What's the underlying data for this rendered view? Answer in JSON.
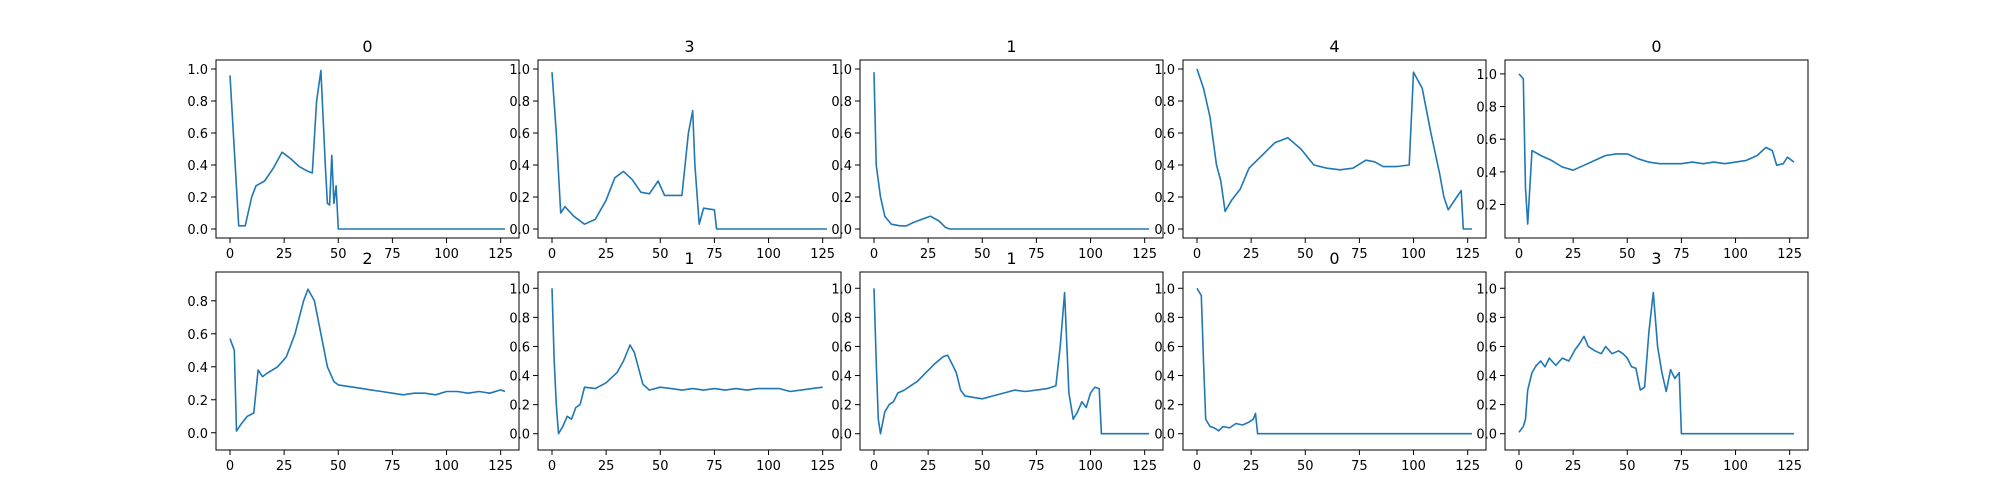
{
  "chart_data": [
    {
      "type": "line",
      "title": "0",
      "x_range": [
        0,
        127
      ],
      "ylim": [
        0,
        1.0
      ],
      "xticks": [
        0,
        25,
        50,
        75,
        100,
        125
      ],
      "yticks": [
        0.0,
        0.2,
        0.4,
        0.6,
        0.8,
        1.0
      ],
      "points": [
        [
          0,
          0.96
        ],
        [
          4,
          0.02
        ],
        [
          7,
          0.02
        ],
        [
          10,
          0.2
        ],
        [
          12,
          0.27
        ],
        [
          16,
          0.3
        ],
        [
          20,
          0.38
        ],
        [
          24,
          0.48
        ],
        [
          28,
          0.44
        ],
        [
          32,
          0.39
        ],
        [
          36,
          0.36
        ],
        [
          38,
          0.35
        ],
        [
          40,
          0.8
        ],
        [
          42,
          0.99
        ],
        [
          44,
          0.4
        ],
        [
          45,
          0.16
        ],
        [
          46,
          0.15
        ],
        [
          47,
          0.46
        ],
        [
          48,
          0.16
        ],
        [
          49,
          0.27
        ],
        [
          50,
          0.0
        ],
        [
          60,
          0.0
        ],
        [
          80,
          0.0
        ],
        [
          100,
          0.0
        ],
        [
          127,
          0.0
        ]
      ]
    },
    {
      "type": "line",
      "title": "3",
      "x_range": [
        0,
        127
      ],
      "ylim": [
        0,
        1.0
      ],
      "xticks": [
        0,
        25,
        50,
        75,
        100,
        125
      ],
      "yticks": [
        0.0,
        0.2,
        0.4,
        0.6,
        0.8,
        1.0
      ],
      "points": [
        [
          0,
          0.98
        ],
        [
          2,
          0.6
        ],
        [
          4,
          0.1
        ],
        [
          6,
          0.14
        ],
        [
          10,
          0.08
        ],
        [
          15,
          0.03
        ],
        [
          20,
          0.06
        ],
        [
          25,
          0.18
        ],
        [
          29,
          0.32
        ],
        [
          33,
          0.36
        ],
        [
          37,
          0.31
        ],
        [
          41,
          0.23
        ],
        [
          45,
          0.22
        ],
        [
          49,
          0.3
        ],
        [
          52,
          0.21
        ],
        [
          56,
          0.21
        ],
        [
          60,
          0.21
        ],
        [
          63,
          0.6
        ],
        [
          65,
          0.74
        ],
        [
          66,
          0.4
        ],
        [
          68,
          0.03
        ],
        [
          70,
          0.13
        ],
        [
          75,
          0.12
        ],
        [
          76,
          0.0
        ],
        [
          80,
          0.0
        ],
        [
          100,
          0.0
        ],
        [
          127,
          0.0
        ]
      ]
    },
    {
      "type": "line",
      "title": "1",
      "x_range": [
        0,
        127
      ],
      "ylim": [
        0,
        1.0
      ],
      "xticks": [
        0,
        25,
        50,
        75,
        100,
        125
      ],
      "yticks": [
        0.0,
        0.2,
        0.4,
        0.6,
        0.8,
        1.0
      ],
      "points": [
        [
          0,
          0.98
        ],
        [
          1,
          0.4
        ],
        [
          3,
          0.2
        ],
        [
          5,
          0.08
        ],
        [
          8,
          0.03
        ],
        [
          12,
          0.02
        ],
        [
          15,
          0.02
        ],
        [
          18,
          0.04
        ],
        [
          22,
          0.06
        ],
        [
          26,
          0.08
        ],
        [
          30,
          0.05
        ],
        [
          33,
          0.01
        ],
        [
          35,
          0.0
        ],
        [
          60,
          0.0
        ],
        [
          100,
          0.0
        ],
        [
          127,
          0.0
        ]
      ]
    },
    {
      "type": "line",
      "title": "4",
      "x_range": [
        0,
        127
      ],
      "ylim": [
        0,
        1.0
      ],
      "xticks": [
        0,
        25,
        50,
        75,
        100,
        125
      ],
      "yticks": [
        0.0,
        0.2,
        0.4,
        0.6,
        0.8,
        1.0
      ],
      "points": [
        [
          0,
          1.0
        ],
        [
          3,
          0.88
        ],
        [
          6,
          0.7
        ],
        [
          9,
          0.4
        ],
        [
          11,
          0.3
        ],
        [
          13,
          0.11
        ],
        [
          16,
          0.18
        ],
        [
          20,
          0.25
        ],
        [
          24,
          0.38
        ],
        [
          30,
          0.46
        ],
        [
          36,
          0.54
        ],
        [
          42,
          0.57
        ],
        [
          48,
          0.5
        ],
        [
          54,
          0.4
        ],
        [
          60,
          0.38
        ],
        [
          66,
          0.37
        ],
        [
          72,
          0.38
        ],
        [
          78,
          0.43
        ],
        [
          82,
          0.42
        ],
        [
          86,
          0.39
        ],
        [
          92,
          0.39
        ],
        [
          98,
          0.4
        ],
        [
          100,
          0.98
        ],
        [
          104,
          0.88
        ],
        [
          108,
          0.6
        ],
        [
          112,
          0.35
        ],
        [
          114,
          0.2
        ],
        [
          116,
          0.12
        ],
        [
          120,
          0.2
        ],
        [
          122,
          0.24
        ],
        [
          123,
          0.0
        ],
        [
          127,
          0.0
        ]
      ]
    },
    {
      "type": "line",
      "title": "0",
      "x_range": [
        0,
        127
      ],
      "ylim": [
        0.05,
        1.03
      ],
      "xticks": [
        0,
        25,
        50,
        75,
        100,
        125
      ],
      "yticks": [
        0.2,
        0.4,
        0.6,
        0.8,
        1.0
      ],
      "points": [
        [
          0,
          1.0
        ],
        [
          2,
          0.97
        ],
        [
          3,
          0.3
        ],
        [
          4,
          0.08
        ],
        [
          5,
          0.3
        ],
        [
          6,
          0.53
        ],
        [
          10,
          0.5
        ],
        [
          15,
          0.47
        ],
        [
          20,
          0.43
        ],
        [
          25,
          0.41
        ],
        [
          30,
          0.44
        ],
        [
          35,
          0.47
        ],
        [
          40,
          0.5
        ],
        [
          45,
          0.51
        ],
        [
          50,
          0.51
        ],
        [
          55,
          0.48
        ],
        [
          60,
          0.46
        ],
        [
          65,
          0.45
        ],
        [
          70,
          0.45
        ],
        [
          75,
          0.45
        ],
        [
          80,
          0.46
        ],
        [
          85,
          0.45
        ],
        [
          90,
          0.46
        ],
        [
          95,
          0.45
        ],
        [
          100,
          0.46
        ],
        [
          105,
          0.47
        ],
        [
          110,
          0.5
        ],
        [
          114,
          0.55
        ],
        [
          117,
          0.53
        ],
        [
          119,
          0.44
        ],
        [
          122,
          0.45
        ],
        [
          124,
          0.49
        ],
        [
          127,
          0.46
        ]
      ]
    },
    {
      "type": "line",
      "title": "2",
      "x_range": [
        0,
        127
      ],
      "ylim": [
        -0.05,
        0.92
      ],
      "xticks": [
        0,
        25,
        50,
        75,
        100,
        125
      ],
      "yticks": [
        0.0,
        0.2,
        0.4,
        0.6,
        0.8
      ],
      "points": [
        [
          0,
          0.57
        ],
        [
          2,
          0.5
        ],
        [
          3,
          0.01
        ],
        [
          5,
          0.05
        ],
        [
          8,
          0.1
        ],
        [
          11,
          0.12
        ],
        [
          13,
          0.38
        ],
        [
          15,
          0.34
        ],
        [
          17,
          0.36
        ],
        [
          22,
          0.4
        ],
        [
          26,
          0.46
        ],
        [
          30,
          0.6
        ],
        [
          34,
          0.8
        ],
        [
          36,
          0.87
        ],
        [
          39,
          0.8
        ],
        [
          42,
          0.6
        ],
        [
          45,
          0.4
        ],
        [
          48,
          0.31
        ],
        [
          50,
          0.29
        ],
        [
          55,
          0.28
        ],
        [
          60,
          0.27
        ],
        [
          65,
          0.26
        ],
        [
          70,
          0.25
        ],
        [
          75,
          0.24
        ],
        [
          80,
          0.23
        ],
        [
          85,
          0.24
        ],
        [
          90,
          0.24
        ],
        [
          95,
          0.23
        ],
        [
          100,
          0.25
        ],
        [
          105,
          0.25
        ],
        [
          110,
          0.24
        ],
        [
          115,
          0.25
        ],
        [
          120,
          0.24
        ],
        [
          125,
          0.26
        ],
        [
          127,
          0.25
        ]
      ]
    },
    {
      "type": "line",
      "title": "1",
      "x_range": [
        0,
        127
      ],
      "ylim": [
        -0.05,
        1.05
      ],
      "xticks": [
        0,
        25,
        50,
        75,
        100,
        125
      ],
      "yticks": [
        0.0,
        0.2,
        0.4,
        0.6,
        0.8,
        1.0
      ],
      "points": [
        [
          0,
          1.0
        ],
        [
          1,
          0.5
        ],
        [
          2,
          0.2
        ],
        [
          3,
          0.0
        ],
        [
          5,
          0.05
        ],
        [
          7,
          0.12
        ],
        [
          9,
          0.1
        ],
        [
          11,
          0.18
        ],
        [
          13,
          0.2
        ],
        [
          15,
          0.32
        ],
        [
          20,
          0.31
        ],
        [
          25,
          0.35
        ],
        [
          30,
          0.42
        ],
        [
          33,
          0.5
        ],
        [
          36,
          0.61
        ],
        [
          38,
          0.56
        ],
        [
          40,
          0.45
        ],
        [
          42,
          0.34
        ],
        [
          45,
          0.3
        ],
        [
          50,
          0.32
        ],
        [
          55,
          0.31
        ],
        [
          60,
          0.3
        ],
        [
          65,
          0.31
        ],
        [
          70,
          0.3
        ],
        [
          75,
          0.31
        ],
        [
          80,
          0.3
        ],
        [
          85,
          0.31
        ],
        [
          90,
          0.3
        ],
        [
          95,
          0.31
        ],
        [
          100,
          0.31
        ],
        [
          105,
          0.31
        ],
        [
          110,
          0.29
        ],
        [
          115,
          0.3
        ],
        [
          120,
          0.31
        ],
        [
          125,
          0.32
        ]
      ]
    },
    {
      "type": "line",
      "title": "1",
      "x_range": [
        0,
        127
      ],
      "ylim": [
        -0.05,
        1.05
      ],
      "xticks": [
        0,
        25,
        50,
        75,
        100,
        125
      ],
      "yticks": [
        0.0,
        0.2,
        0.4,
        0.6,
        0.8,
        1.0
      ],
      "points": [
        [
          0,
          1.0
        ],
        [
          1,
          0.5
        ],
        [
          2,
          0.1
        ],
        [
          3,
          0.0
        ],
        [
          5,
          0.15
        ],
        [
          7,
          0.2
        ],
        [
          9,
          0.22
        ],
        [
          11,
          0.28
        ],
        [
          14,
          0.3
        ],
        [
          17,
          0.33
        ],
        [
          20,
          0.36
        ],
        [
          24,
          0.42
        ],
        [
          28,
          0.48
        ],
        [
          32,
          0.53
        ],
        [
          34,
          0.54
        ],
        [
          36,
          0.48
        ],
        [
          38,
          0.42
        ],
        [
          40,
          0.3
        ],
        [
          42,
          0.26
        ],
        [
          46,
          0.25
        ],
        [
          50,
          0.24
        ],
        [
          55,
          0.26
        ],
        [
          60,
          0.28
        ],
        [
          65,
          0.3
        ],
        [
          70,
          0.29
        ],
        [
          75,
          0.3
        ],
        [
          80,
          0.31
        ],
        [
          84,
          0.33
        ],
        [
          86,
          0.6
        ],
        [
          88,
          0.97
        ],
        [
          90,
          0.28
        ],
        [
          92,
          0.1
        ],
        [
          94,
          0.15
        ],
        [
          96,
          0.22
        ],
        [
          98,
          0.18
        ],
        [
          100,
          0.28
        ],
        [
          102,
          0.32
        ],
        [
          104,
          0.31
        ],
        [
          105,
          0.0
        ],
        [
          110,
          0.0
        ],
        [
          127,
          0.0
        ]
      ]
    },
    {
      "type": "line",
      "title": "0",
      "x_range": [
        0,
        127
      ],
      "ylim": [
        -0.05,
        1.05
      ],
      "xticks": [
        0,
        25,
        50,
        75,
        100,
        125
      ],
      "yticks": [
        0.0,
        0.2,
        0.4,
        0.6,
        0.8,
        1.0
      ],
      "points": [
        [
          0,
          1.0
        ],
        [
          2,
          0.95
        ],
        [
          3,
          0.5
        ],
        [
          4,
          0.1
        ],
        [
          6,
          0.05
        ],
        [
          8,
          0.04
        ],
        [
          10,
          0.02
        ],
        [
          12,
          0.05
        ],
        [
          15,
          0.04
        ],
        [
          18,
          0.07
        ],
        [
          21,
          0.06
        ],
        [
          24,
          0.08
        ],
        [
          26,
          0.1
        ],
        [
          27,
          0.14
        ],
        [
          28,
          0.0
        ],
        [
          40,
          0.0
        ],
        [
          60,
          0.0
        ],
        [
          80,
          0.0
        ],
        [
          100,
          0.0
        ],
        [
          127,
          0.0
        ]
      ]
    },
    {
      "type": "line",
      "title": "3",
      "x_range": [
        0,
        127
      ],
      "ylim": [
        -0.05,
        1.05
      ],
      "xticks": [
        0,
        25,
        50,
        75,
        100,
        125
      ],
      "yticks": [
        0.0,
        0.2,
        0.4,
        0.6,
        0.8,
        1.0
      ],
      "points": [
        [
          0,
          0.01
        ],
        [
          2,
          0.05
        ],
        [
          3,
          0.1
        ],
        [
          4,
          0.3
        ],
        [
          6,
          0.42
        ],
        [
          8,
          0.47
        ],
        [
          10,
          0.5
        ],
        [
          12,
          0.46
        ],
        [
          14,
          0.52
        ],
        [
          17,
          0.47
        ],
        [
          20,
          0.52
        ],
        [
          23,
          0.5
        ],
        [
          26,
          0.58
        ],
        [
          28,
          0.62
        ],
        [
          30,
          0.67
        ],
        [
          32,
          0.6
        ],
        [
          35,
          0.57
        ],
        [
          38,
          0.55
        ],
        [
          40,
          0.6
        ],
        [
          43,
          0.55
        ],
        [
          46,
          0.57
        ],
        [
          48,
          0.55
        ],
        [
          50,
          0.52
        ],
        [
          52,
          0.46
        ],
        [
          54,
          0.45
        ],
        [
          56,
          0.3
        ],
        [
          58,
          0.32
        ],
        [
          60,
          0.7
        ],
        [
          62,
          0.97
        ],
        [
          64,
          0.6
        ],
        [
          66,
          0.42
        ],
        [
          68,
          0.29
        ],
        [
          70,
          0.44
        ],
        [
          72,
          0.38
        ],
        [
          74,
          0.42
        ],
        [
          75,
          0.0
        ],
        [
          80,
          0.0
        ],
        [
          100,
          0.0
        ],
        [
          127,
          0.0
        ]
      ]
    }
  ]
}
